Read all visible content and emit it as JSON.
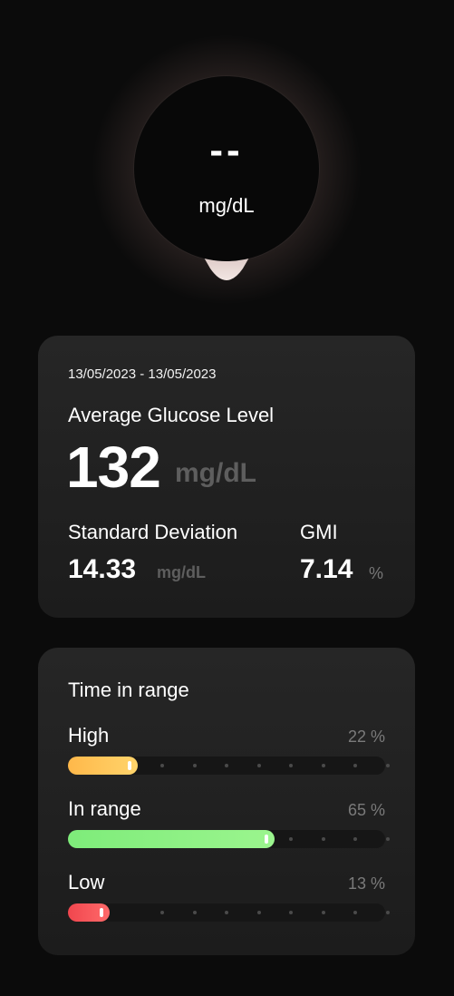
{
  "gauge": {
    "value": "--",
    "unit": "mg/dL"
  },
  "stats": {
    "date_range": "13/05/2023 - 13/05/2023",
    "average_label": "Average Glucose Level",
    "average_value": "132",
    "average_unit": "mg/dL",
    "sd_label": "Standard Deviation",
    "sd_value": "14.33",
    "sd_unit": "mg/dL",
    "gmi_label": "GMI",
    "gmi_value": "7.14",
    "gmi_unit": "%"
  },
  "time_in_range": {
    "title": "Time in range",
    "rows": [
      {
        "label": "High",
        "percent_text": "22 %",
        "fraction": 0.22,
        "color_start": "#ffb84a",
        "color_end": "#ffd46b"
      },
      {
        "label": "In range",
        "percent_text": "65 %",
        "fraction": 0.65,
        "color_start": "#7eec7a",
        "color_end": "#9bf58e"
      },
      {
        "label": "Low",
        "percent_text": "13 %",
        "fraction": 0.13,
        "color_start": "#f0464e",
        "color_end": "#ff6a6a"
      }
    ]
  }
}
